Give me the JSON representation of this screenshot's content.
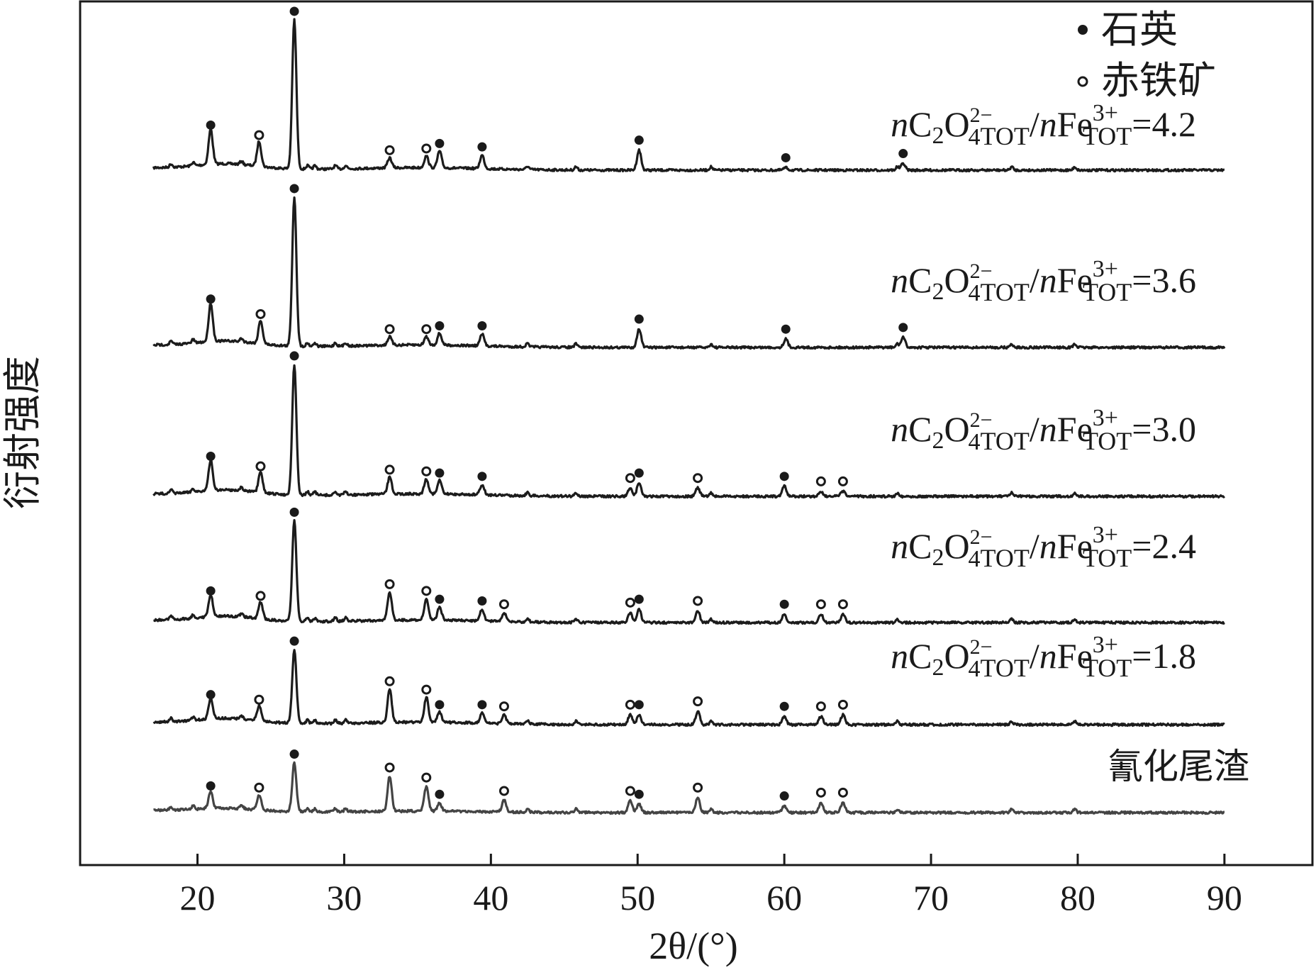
{
  "chart_data": {
    "type": "line",
    "xlabel": "2θ/(°)",
    "ylabel": "衍射强度",
    "xlim": [
      12,
      96
    ],
    "x_ticks": [
      20,
      30,
      40,
      50,
      60,
      70,
      80,
      90
    ],
    "y_ticks_shown": false,
    "grid": false,
    "legend": {
      "placement": "top-right",
      "entries": [
        {
          "symbol": "filled-circle",
          "label": "石英"
        },
        {
          "symbol": "open-circle",
          "label": "赤铁矿"
        }
      ]
    },
    "x_range": [
      17,
      90
    ],
    "series": [
      {
        "name": "nC2O4 2− TOT/nFe 3+ TOT=4.2",
        "label_parts": {
          "n1": "n",
          "ion1": "C",
          "sub1": "2",
          "ion1b": "O",
          "sub1b": "4",
          "sup1": "2−",
          "tot1": "TOT",
          "slash": "/",
          "n2": "n",
          "ion2": "Fe",
          "sup2": "3+",
          "tot2": "TOT",
          "value": "=4.2"
        },
        "peaks": [
          {
            "x": 20.9,
            "h": 42,
            "phase": "quartz"
          },
          {
            "x": 24.2,
            "h": 30,
            "phase": "hematite"
          },
          {
            "x": 26.6,
            "h": 178,
            "phase": "quartz"
          },
          {
            "x": 33.1,
            "h": 12,
            "phase": "hematite"
          },
          {
            "x": 35.6,
            "h": 14,
            "phase": "hematite"
          },
          {
            "x": 36.5,
            "h": 20,
            "phase": "quartz"
          },
          {
            "x": 39.4,
            "h": 16,
            "phase": "quartz"
          },
          {
            "x": 50.1,
            "h": 24,
            "phase": "quartz"
          },
          {
            "x": 60.1,
            "h": 3,
            "phase": "quartz"
          },
          {
            "x": 68.1,
            "h": 8,
            "phase": "quartz"
          }
        ]
      },
      {
        "name": "nC2O4 2− TOT/nFe 3+ TOT=3.6",
        "label_parts": {
          "n1": "n",
          "ion1": "C",
          "sub1": "2",
          "ion1b": "O",
          "sub1b": "4",
          "sup1": "2−",
          "tot1": "TOT",
          "slash": "/",
          "n2": "n",
          "ion2": "Fe",
          "sup2": "3+",
          "tot2": "TOT",
          "value": "=3.6"
        },
        "peaks": [
          {
            "x": 20.9,
            "h": 46,
            "phase": "quartz"
          },
          {
            "x": 24.3,
            "h": 28,
            "phase": "hematite"
          },
          {
            "x": 26.6,
            "h": 178,
            "phase": "quartz"
          },
          {
            "x": 33.1,
            "h": 10,
            "phase": "hematite"
          },
          {
            "x": 35.6,
            "h": 10,
            "phase": "hematite"
          },
          {
            "x": 36.5,
            "h": 14,
            "phase": "quartz"
          },
          {
            "x": 39.4,
            "h": 14,
            "phase": "quartz"
          },
          {
            "x": 50.1,
            "h": 22,
            "phase": "quartz"
          },
          {
            "x": 60.1,
            "h": 10,
            "phase": "quartz"
          },
          {
            "x": 68.1,
            "h": 12,
            "phase": "quartz"
          }
        ]
      },
      {
        "name": "nC2O4 2− TOT/nFe 3+ TOT=3.0",
        "label_parts": {
          "n1": "n",
          "ion1": "C",
          "sub1": "2",
          "ion1b": "O",
          "sub1b": "4",
          "sup1": "2−",
          "tot1": "TOT",
          "slash": "/",
          "n2": "n",
          "ion2": "Fe",
          "sup2": "3+",
          "tot2": "TOT",
          "value": "=3.0"
        },
        "peaks": [
          {
            "x": 20.9,
            "h": 36,
            "phase": "quartz"
          },
          {
            "x": 24.3,
            "h": 24,
            "phase": "hematite"
          },
          {
            "x": 26.6,
            "h": 156,
            "phase": "quartz"
          },
          {
            "x": 33.1,
            "h": 20,
            "phase": "hematite"
          },
          {
            "x": 35.6,
            "h": 18,
            "phase": "hematite"
          },
          {
            "x": 36.5,
            "h": 16,
            "phase": "quartz"
          },
          {
            "x": 39.4,
            "h": 12,
            "phase": "quartz"
          },
          {
            "x": 49.5,
            "h": 10,
            "phase": "hematite"
          },
          {
            "x": 50.1,
            "h": 16,
            "phase": "quartz"
          },
          {
            "x": 54.1,
            "h": 10,
            "phase": "hematite"
          },
          {
            "x": 60.0,
            "h": 12,
            "phase": "quartz"
          },
          {
            "x": 62.5,
            "h": 6,
            "phase": "hematite"
          },
          {
            "x": 64.0,
            "h": 6,
            "phase": "hematite"
          }
        ]
      },
      {
        "name": "nC2O4 2− TOT/nFe 3+ TOT=2.4",
        "label_parts": {
          "n1": "n",
          "ion1": "C",
          "sub1": "2",
          "ion1b": "O",
          "sub1b": "4",
          "sup1": "2−",
          "tot1": "TOT",
          "slash": "/",
          "n2": "n",
          "ion2": "Fe",
          "sup2": "3+",
          "tot2": "TOT",
          "value": "=2.4"
        },
        "peaks": [
          {
            "x": 20.9,
            "h": 26,
            "phase": "quartz"
          },
          {
            "x": 24.3,
            "h": 20,
            "phase": "hematite"
          },
          {
            "x": 26.6,
            "h": 120,
            "phase": "quartz"
          },
          {
            "x": 33.1,
            "h": 34,
            "phase": "hematite"
          },
          {
            "x": 35.6,
            "h": 26,
            "phase": "hematite"
          },
          {
            "x": 36.5,
            "h": 16,
            "phase": "quartz"
          },
          {
            "x": 39.4,
            "h": 14,
            "phase": "quartz"
          },
          {
            "x": 40.9,
            "h": 10,
            "phase": "hematite"
          },
          {
            "x": 49.5,
            "h": 12,
            "phase": "hematite"
          },
          {
            "x": 50.1,
            "h": 16,
            "phase": "quartz"
          },
          {
            "x": 54.1,
            "h": 14,
            "phase": "hematite"
          },
          {
            "x": 60.0,
            "h": 10,
            "phase": "quartz"
          },
          {
            "x": 62.5,
            "h": 10,
            "phase": "hematite"
          },
          {
            "x": 64.0,
            "h": 10,
            "phase": "hematite"
          }
        ]
      },
      {
        "name": "nC2O4 2− TOT/nFe 3+ TOT=1.8",
        "label_parts": {
          "n1": "n",
          "ion1": "C",
          "sub1": "2",
          "ion1b": "O",
          "sub1b": "4",
          "sup1": "2−",
          "tot1": "TOT",
          "slash": "/",
          "n2": "n",
          "ion2": "Fe",
          "sup2": "3+",
          "tot2": "TOT",
          "value": "=1.8"
        },
        "peaks": [
          {
            "x": 20.9,
            "h": 24,
            "phase": "quartz"
          },
          {
            "x": 24.2,
            "h": 18,
            "phase": "hematite"
          },
          {
            "x": 26.6,
            "h": 88,
            "phase": "quartz"
          },
          {
            "x": 33.1,
            "h": 40,
            "phase": "hematite"
          },
          {
            "x": 35.6,
            "h": 30,
            "phase": "hematite"
          },
          {
            "x": 36.5,
            "h": 12,
            "phase": "quartz"
          },
          {
            "x": 39.4,
            "h": 12,
            "phase": "quartz"
          },
          {
            "x": 40.9,
            "h": 10,
            "phase": "hematite"
          },
          {
            "x": 49.5,
            "h": 12,
            "phase": "hematite"
          },
          {
            "x": 50.1,
            "h": 12,
            "phase": "quartz"
          },
          {
            "x": 54.1,
            "h": 16,
            "phase": "hematite"
          },
          {
            "x": 60.0,
            "h": 10,
            "phase": "quartz"
          },
          {
            "x": 62.5,
            "h": 10,
            "phase": "hematite"
          },
          {
            "x": 64.0,
            "h": 12,
            "phase": "hematite"
          }
        ]
      },
      {
        "name": "氰化尾渣",
        "label_parts": {
          "value": "氰化尾渣"
        },
        "peaks": [
          {
            "x": 20.9,
            "h": 20,
            "phase": "quartz"
          },
          {
            "x": 24.2,
            "h": 18,
            "phase": "hematite"
          },
          {
            "x": 26.6,
            "h": 58,
            "phase": "quartz"
          },
          {
            "x": 33.1,
            "h": 42,
            "phase": "hematite"
          },
          {
            "x": 35.6,
            "h": 30,
            "phase": "hematite"
          },
          {
            "x": 36.5,
            "h": 10,
            "phase": "quartz"
          },
          {
            "x": 40.9,
            "h": 14,
            "phase": "hematite"
          },
          {
            "x": 49.5,
            "h": 14,
            "phase": "hematite"
          },
          {
            "x": 50.1,
            "h": 10,
            "phase": "quartz"
          },
          {
            "x": 54.1,
            "h": 18,
            "phase": "hematite"
          },
          {
            "x": 60.0,
            "h": 8,
            "phase": "quartz"
          },
          {
            "x": 62.5,
            "h": 12,
            "phase": "hematite"
          },
          {
            "x": 64.0,
            "h": 12,
            "phase": "hematite"
          }
        ]
      }
    ]
  }
}
